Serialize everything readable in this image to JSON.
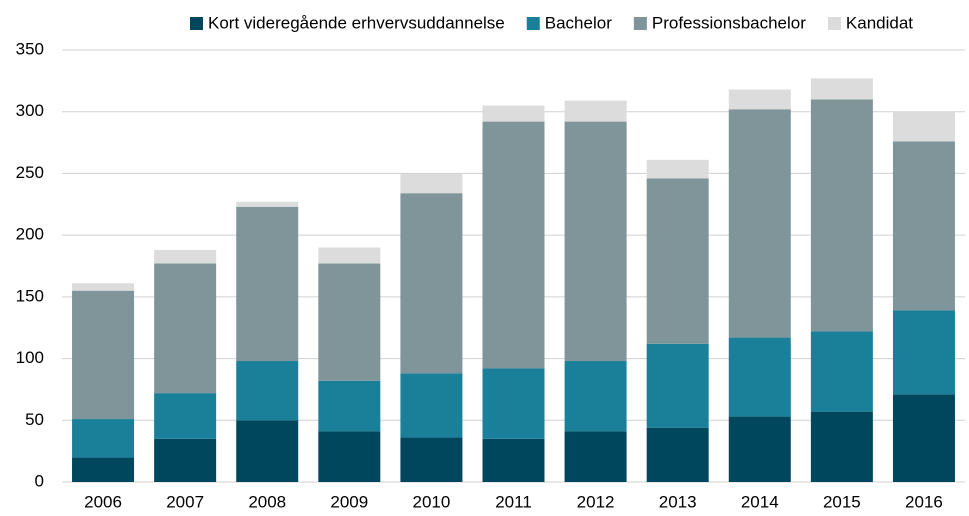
{
  "chart_data": {
    "type": "stacked_bar",
    "categories": [
      "2006",
      "2007",
      "2008",
      "2009",
      "2010",
      "2011",
      "2012",
      "2013",
      "2014",
      "2015",
      "2016"
    ],
    "series": [
      {
        "name": "Kort videregående erhvervsuddannelse",
        "color": "#00475e",
        "values": [
          20,
          35,
          50,
          41,
          36,
          35,
          41,
          44,
          53,
          57,
          71
        ]
      },
      {
        "name": "Bachelor",
        "color": "#1a8099",
        "values": [
          31,
          37,
          48,
          41,
          52,
          57,
          57,
          68,
          64,
          65,
          68
        ]
      },
      {
        "name": "Professionsbachelor",
        "color": "#7f9599",
        "values": [
          104,
          105,
          125,
          95,
          146,
          200,
          194,
          134,
          185,
          188,
          137
        ]
      },
      {
        "name": "Kandidat",
        "color": "#dcdcdc",
        "values": [
          6,
          11,
          4,
          13,
          16,
          13,
          17,
          15,
          16,
          17,
          24
        ]
      }
    ],
    "ylim": [
      0,
      350
    ],
    "yticks": [
      0,
      50,
      100,
      150,
      200,
      250,
      300,
      350
    ],
    "grid": true,
    "legend": "top"
  }
}
